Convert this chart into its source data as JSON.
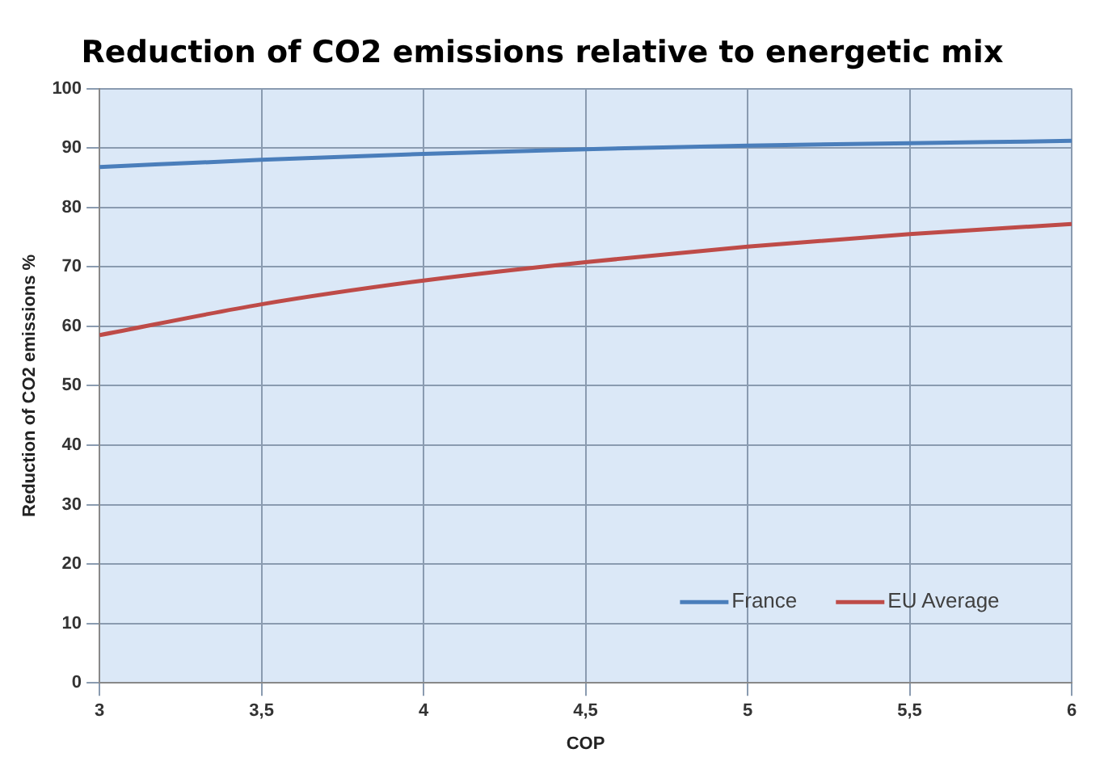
{
  "chart_data": {
    "type": "line",
    "title": "Reduction of CO2 emissions relative to energetic mix",
    "xlabel": "COP",
    "ylabel": "Reduction of CO2 emissions %",
    "x": [
      3,
      3.5,
      4,
      4.5,
      5,
      5.5,
      6
    ],
    "series": [
      {
        "name": "France",
        "color": "#4a7ebb",
        "values": [
          86.8,
          88,
          89,
          89.8,
          90.4,
          90.8,
          91.2
        ]
      },
      {
        "name": "EU Average",
        "color": "#be4b48",
        "values": [
          58.5,
          63.7,
          67.7,
          70.8,
          73.4,
          75.5,
          77.2
        ]
      }
    ],
    "xlim": [
      3,
      6
    ],
    "xticks": [
      3,
      {
        "value": 3.5,
        "label": "3,5"
      },
      4,
      {
        "value": 4.5,
        "label": "4,5"
      },
      5,
      {
        "value": 5.5,
        "label": "5,5"
      },
      6
    ],
    "ylim": [
      0,
      100
    ],
    "yticks": [
      0,
      10,
      20,
      30,
      40,
      50,
      60,
      70,
      80,
      90,
      100
    ],
    "grid": true,
    "legend": "bottom right",
    "marker": "none",
    "line_style": "solid"
  }
}
